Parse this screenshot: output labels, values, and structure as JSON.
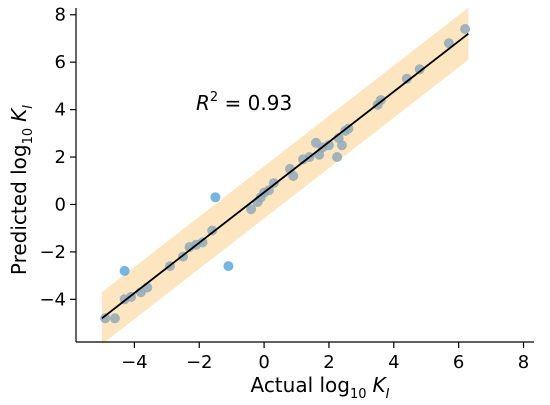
{
  "chart_data": {
    "type": "scatter",
    "xlabel": "Actual log10 KI",
    "ylabel": "Predicted log10 KI",
    "xlabel_parts": {
      "pre": "Actual log",
      "sub": "10",
      "var": "K",
      "varsub": "I"
    },
    "ylabel_parts": {
      "pre": "Predicted log",
      "sub": "10",
      "var": "K",
      "varsub": "I"
    },
    "annotation": {
      "r": "R",
      "sup": "2",
      "value": " = 0.93"
    },
    "xlim": [
      -5.8,
      8.2
    ],
    "ylim": [
      -5.8,
      8.2
    ],
    "xticks": [
      -4,
      -2,
      0,
      2,
      4,
      6,
      8
    ],
    "yticks": [
      -4,
      -2,
      0,
      2,
      4,
      6,
      8
    ],
    "xtick_labels": [
      "−4",
      "−2",
      "0",
      "2",
      "4",
      "6",
      "8"
    ],
    "ytick_labels": [
      "−4",
      "−2",
      "0",
      "2",
      "4",
      "6",
      "8"
    ],
    "fit_line": {
      "x": [
        -5.0,
        6.3
      ],
      "y": [
        -4.8,
        7.2
      ]
    },
    "band": {
      "half_width": 1.1
    },
    "points": {
      "x": [
        -4.9,
        -4.6,
        -4.3,
        -4.3,
        -4.1,
        -3.8,
        -3.6,
        -2.9,
        -2.5,
        -2.3,
        -2.1,
        -1.9,
        -1.6,
        -1.5,
        -1.1,
        -0.4,
        -0.2,
        0.0,
        0.15,
        0.3,
        -0.1,
        0.8,
        1.2,
        1.4,
        1.7,
        1.8,
        2.0,
        2.25,
        2.3,
        2.5,
        2.6,
        2.4,
        3.5,
        3.6,
        4.4,
        4.8,
        5.7,
        6.2,
        0.9,
        1.6
      ],
      "y": [
        -4.8,
        -4.8,
        -4.0,
        -2.8,
        -3.9,
        -3.7,
        -3.5,
        -2.6,
        -2.2,
        -1.8,
        -1.7,
        -1.6,
        -1.1,
        0.3,
        -2.6,
        -0.2,
        0.1,
        0.5,
        0.6,
        0.9,
        0.3,
        1.5,
        1.9,
        2.0,
        2.1,
        2.4,
        2.5,
        2.0,
        2.8,
        3.1,
        3.2,
        2.5,
        4.2,
        4.4,
        5.3,
        5.7,
        6.8,
        7.4,
        1.2,
        2.6
      ]
    },
    "colors": {
      "point": "#5aa9de",
      "point_alt": "#8fa9b8",
      "line": "#000000",
      "band": "#fde6bf"
    },
    "grid": false
  }
}
